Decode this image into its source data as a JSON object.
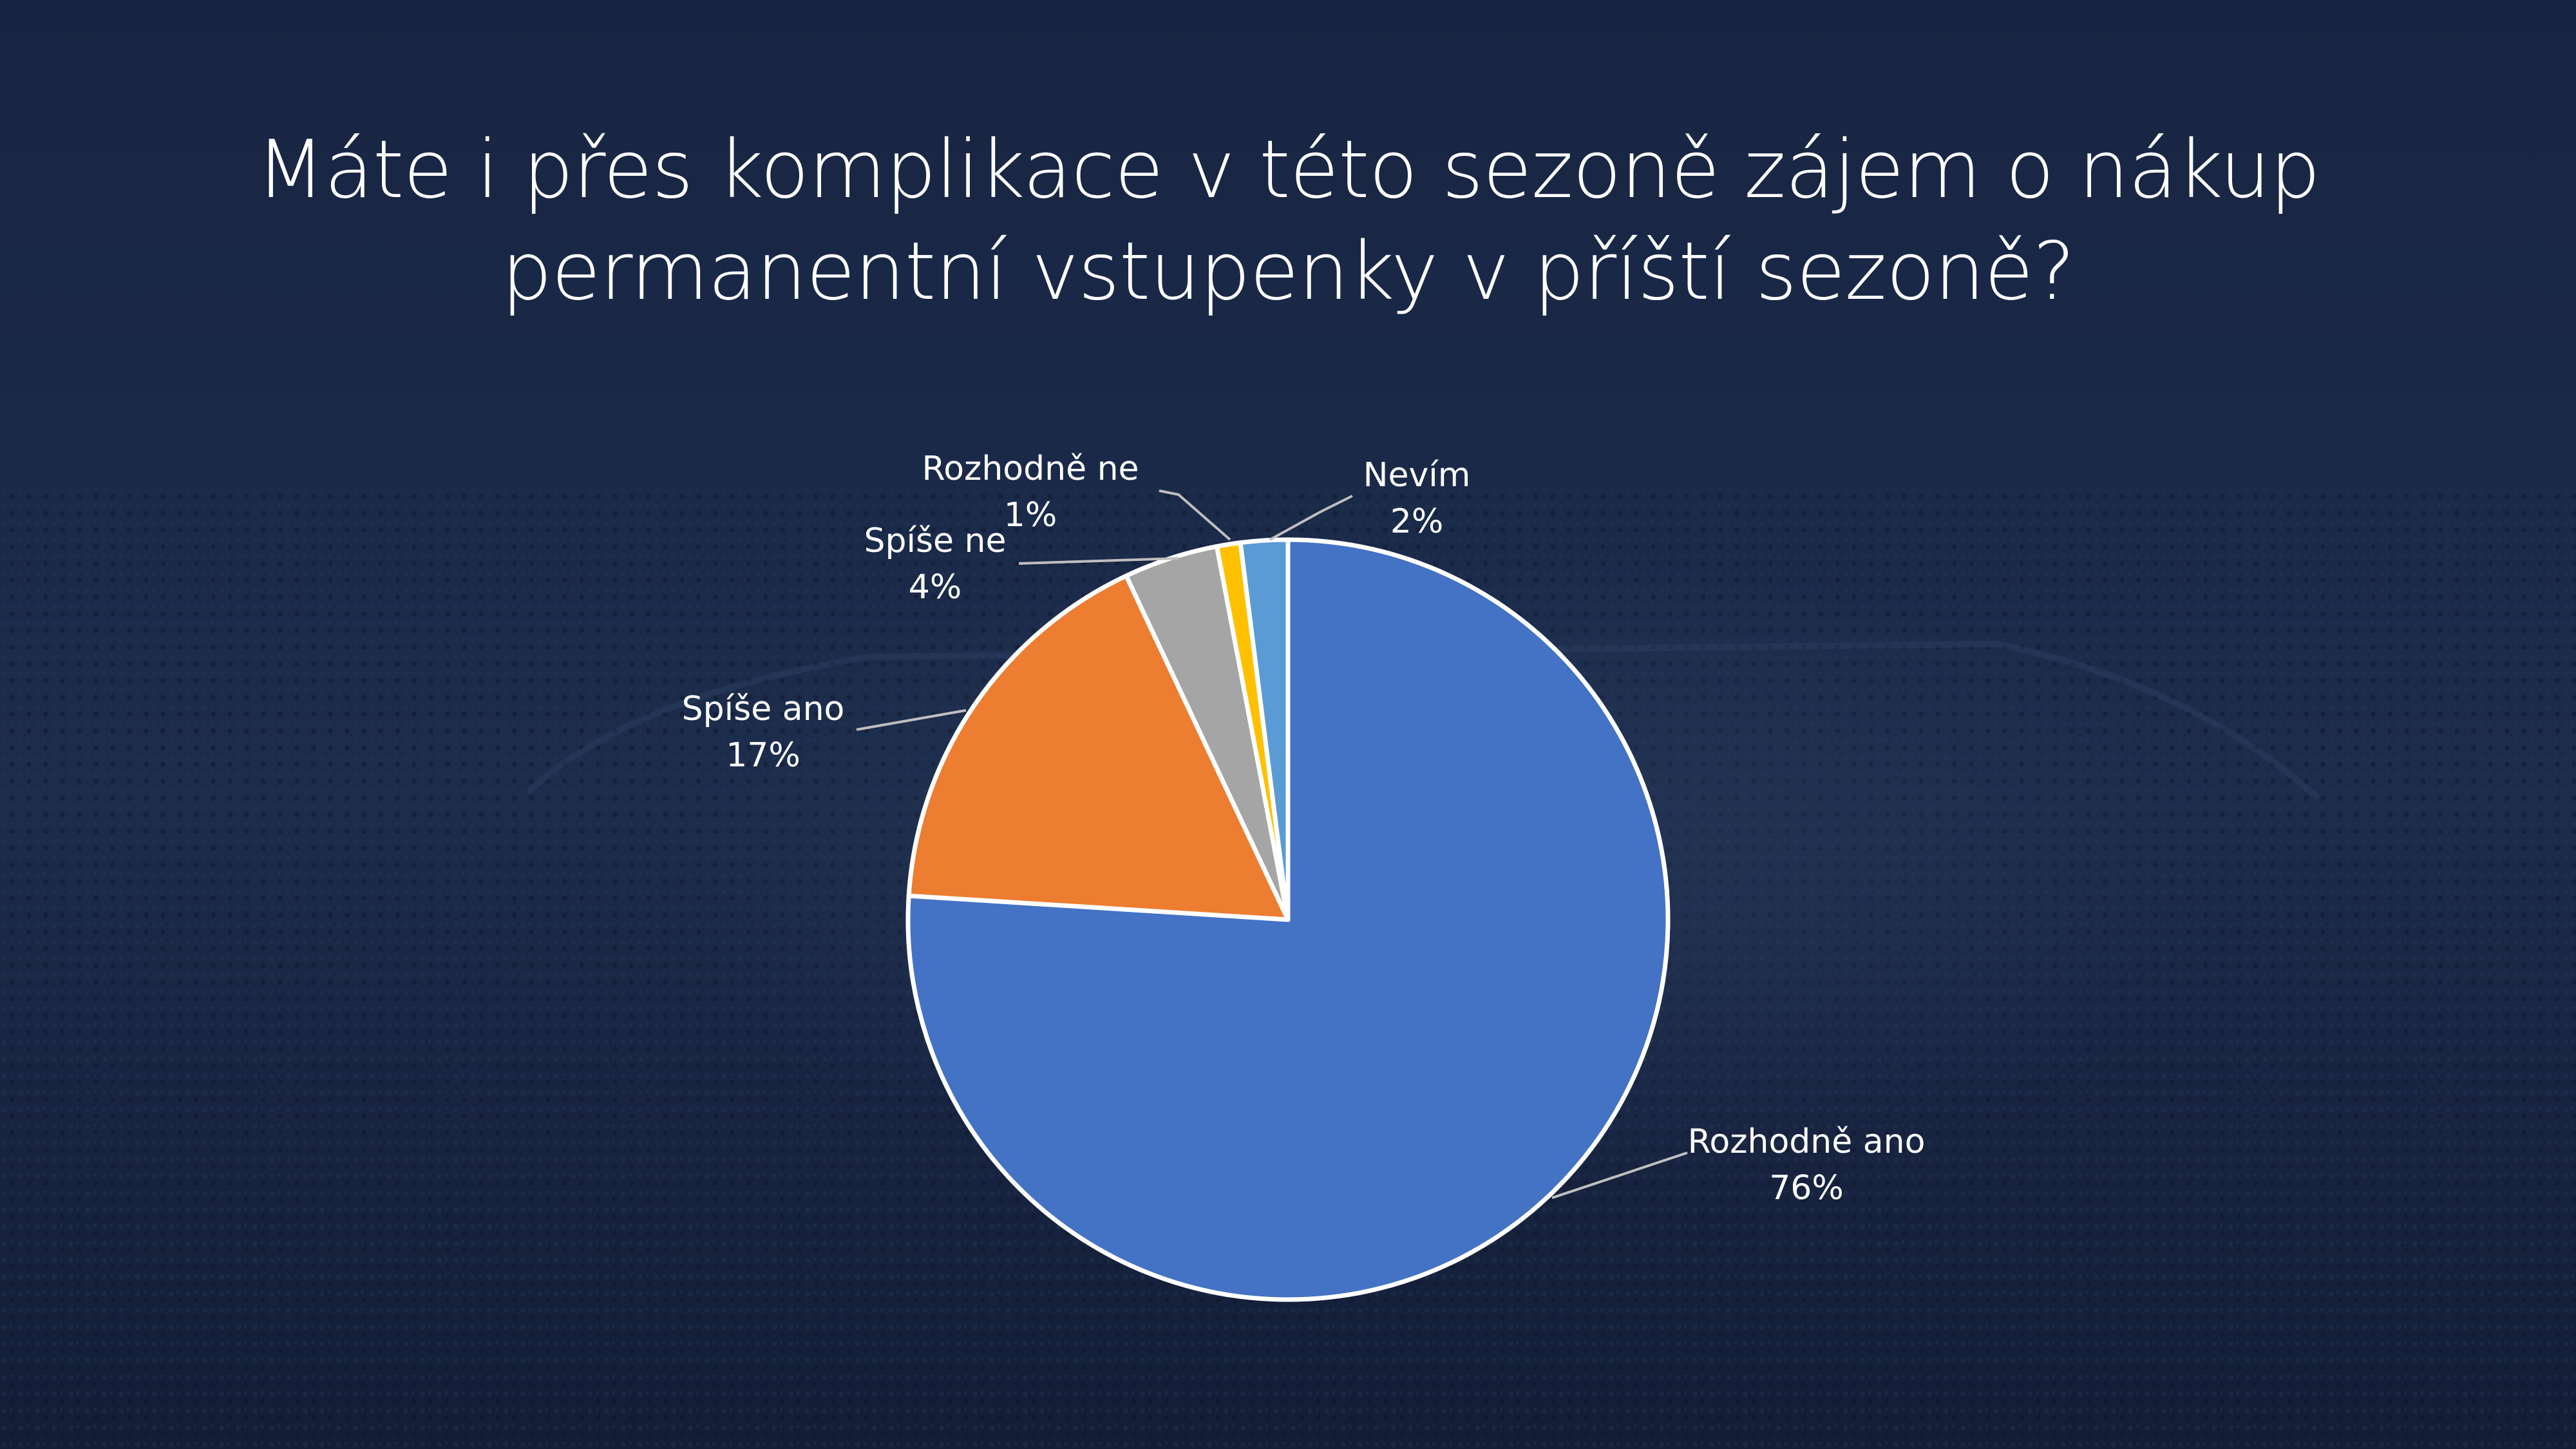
{
  "title": "Máte i přes komplikace v této sezoně zájem o nákup permanentní vstupenky v příští sezoně?",
  "chart_data": {
    "type": "pie",
    "title": "Máte i přes komplikace v této sezoně zájem o nákup permanentní vstupenky v příští sezoně?",
    "start_angle_deg": 0,
    "direction": "clockwise",
    "slices": [
      {
        "label": "Rozhodně ano",
        "value": 76,
        "value_label": "76%",
        "color": "#4472C4"
      },
      {
        "label": "Spíše ano",
        "value": 17,
        "value_label": "17%",
        "color": "#ED7D31"
      },
      {
        "label": "Spíše ne",
        "value": 4,
        "value_label": "4%",
        "color": "#A5A5A5"
      },
      {
        "label": "Rozhodně ne",
        "value": 1,
        "value_label": "1%",
        "color": "#FFC000"
      },
      {
        "label": "Nevím",
        "value": 2,
        "value_label": "2%",
        "color": "#5B9BD5"
      }
    ],
    "legend": "none",
    "data_labels": "outside with leader lines"
  },
  "colors": {
    "background": "#172440",
    "text": "#ffffff",
    "slice_border": "#ffffff"
  }
}
